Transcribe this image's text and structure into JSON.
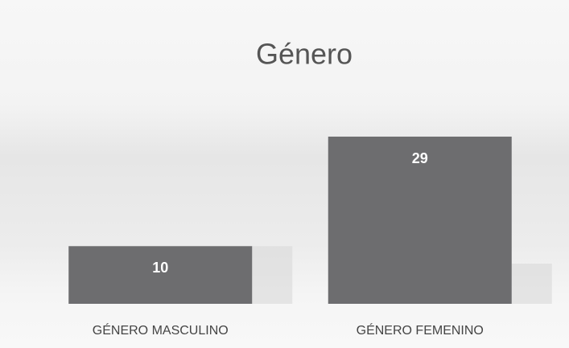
{
  "chart_data": {
    "type": "bar",
    "title": "Género",
    "categories": [
      "GÉNERO MASCULINO",
      "GÉNERO FEMENINO"
    ],
    "values": [
      10,
      29
    ],
    "color": "#6d6d6f"
  }
}
